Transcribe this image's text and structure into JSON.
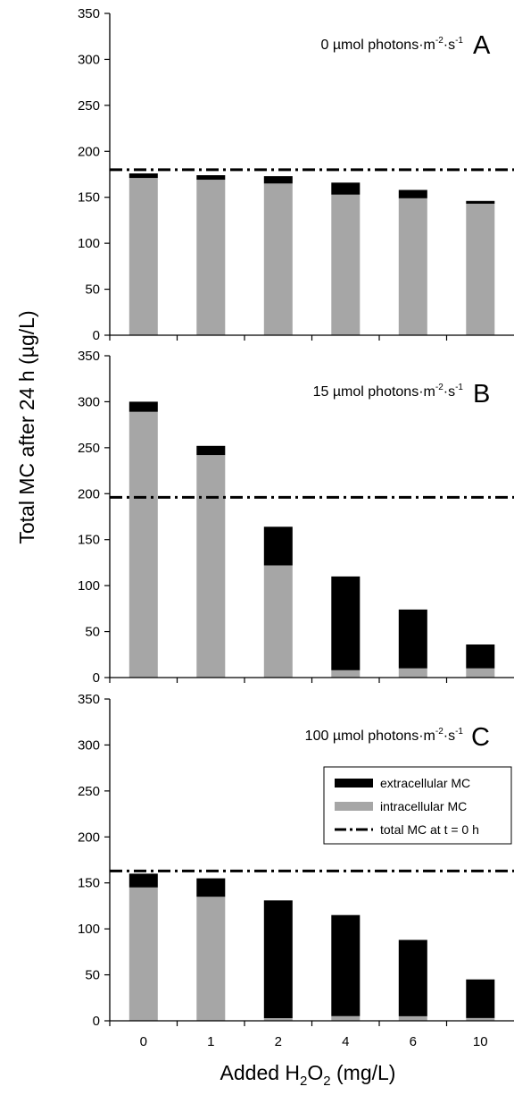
{
  "chart_data": {
    "type": "bar",
    "stacked": true,
    "ylabel": "Total MC after 24 h (µg/L)",
    "xlabel": {
      "pre": "Added H",
      "sub1": "2",
      "mid": "O",
      "sub2": "2",
      "post": " (mg/L)"
    },
    "categories": [
      "0",
      "1",
      "2",
      "4",
      "6",
      "10"
    ],
    "ylim": [
      0,
      350
    ],
    "yticks": [
      0,
      50,
      100,
      150,
      200,
      250,
      300,
      350
    ],
    "colors": {
      "extracellular": "#000000",
      "intracellular": "#a6a6a6",
      "reference_line": "#000000"
    },
    "legend": {
      "position": "inside-right of panel C",
      "entries": [
        {
          "label": "extracellular MC",
          "style": "black-bar"
        },
        {
          "label": "intracellular MC",
          "style": "gray-bar"
        },
        {
          "label": "total MC at t = 0 h",
          "style": "dash-dot-line"
        }
      ]
    },
    "panels": [
      {
        "id": "A",
        "letter": "A",
        "light_label": {
          "pre": "0 µmol photons·m",
          "sup1": "-2",
          "mid": "·s",
          "sup2": "-1"
        },
        "reference_line": 180,
        "series": [
          {
            "name": "intracellular MC",
            "values": [
              171,
              169,
              165,
              153,
              149,
              143
            ]
          },
          {
            "name": "extracellular MC",
            "values": [
              5,
              5,
              8,
              13,
              9,
              3
            ]
          }
        ]
      },
      {
        "id": "B",
        "letter": "B",
        "light_label": {
          "pre": "15 µmol photons·m",
          "sup1": "-2",
          "mid": "·s",
          "sup2": "-1"
        },
        "reference_line": 196,
        "series": [
          {
            "name": "intracellular MC",
            "values": [
              289,
              242,
              122,
              8,
              10,
              10
            ]
          },
          {
            "name": "extracellular MC",
            "values": [
              11,
              10,
              42,
              102,
              64,
              26
            ]
          }
        ]
      },
      {
        "id": "C",
        "letter": "C",
        "light_label": {
          "pre": "100 µmol photons·m",
          "sup1": "-2",
          "mid": "·s",
          "sup2": "-1"
        },
        "reference_line": 163,
        "series": [
          {
            "name": "intracellular MC",
            "values": [
              145,
              135,
              3,
              5,
              5,
              3
            ]
          },
          {
            "name": "extracellular MC",
            "values": [
              15,
              20,
              128,
              110,
              83,
              42
            ]
          }
        ]
      }
    ]
  }
}
